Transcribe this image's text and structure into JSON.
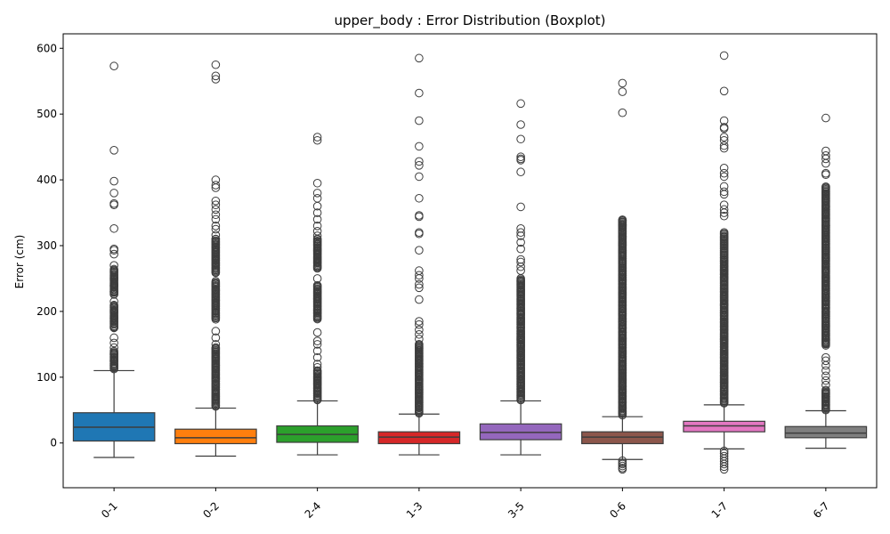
{
  "chart_data": {
    "type": "boxplot",
    "title": "upper_body : Error Distribution (Boxplot)",
    "xlabel": "",
    "ylabel": "Error (cm)",
    "ylim": [
      -68,
      622
    ],
    "yticks": [
      0,
      100,
      200,
      300,
      400,
      500,
      600
    ],
    "grid": false,
    "legend": "none",
    "categories": [
      "0-1",
      "0-2",
      "2-4",
      "1-3",
      "3-5",
      "0-6",
      "1-7",
      "6-7"
    ],
    "colors": [
      "#1f77b4",
      "#ff7f0e",
      "#2ca02c",
      "#d62728",
      "#9467bd",
      "#8c564b",
      "#e377c2",
      "#7f7f7f"
    ],
    "series": [
      {
        "whisker_low": -22,
        "q1": 3,
        "median": 24,
        "q3": 46,
        "whisker_high": 110,
        "outliers_low": [],
        "outlier_dense_ranges": [
          [
            112,
            140
          ],
          [
            175,
            210
          ],
          [
            225,
            265
          ]
        ],
        "outliers": [
          573,
          445,
          398,
          380,
          364,
          362,
          326,
          295,
          293,
          287,
          270,
          250,
          240,
          230,
          215,
          200,
          190,
          185,
          175,
          160,
          152,
          145,
          135,
          125,
          118
        ]
      },
      {
        "whisker_low": -20,
        "q1": -1,
        "median": 8,
        "q3": 21,
        "whisker_high": 53,
        "outliers_low": [],
        "outlier_dense_ranges": [
          [
            55,
            145
          ],
          [
            188,
            245
          ],
          [
            258,
            310
          ]
        ],
        "outliers": [
          575,
          558,
          553,
          400,
          392,
          388,
          368,
          362,
          355,
          347,
          340,
          330,
          325,
          316,
          310,
          170,
          160,
          150
        ]
      },
      {
        "whisker_low": -18,
        "q1": 1,
        "median": 13,
        "q3": 26,
        "whisker_high": 64,
        "outliers_low": [],
        "outlier_dense_ranges": [
          [
            65,
            110
          ],
          [
            188,
            240
          ],
          [
            265,
            310
          ]
        ],
        "outliers": [
          465,
          460,
          395,
          380,
          372,
          360,
          350,
          340,
          330,
          322,
          315,
          250,
          168,
          155,
          150,
          140,
          130,
          120,
          115
        ]
      },
      {
        "whisker_low": -18,
        "q1": -1,
        "median": 9,
        "q3": 17,
        "whisker_high": 44,
        "outliers_low": [],
        "outlier_dense_ranges": [
          [
            45,
            150
          ]
        ],
        "outliers": [
          585,
          532,
          490,
          451,
          428,
          422,
          405,
          372,
          346,
          344,
          320,
          318,
          293,
          262,
          255,
          250,
          241,
          236,
          218,
          185,
          180,
          172,
          165,
          158
        ]
      },
      {
        "whisker_low": -18,
        "q1": 5,
        "median": 16,
        "q3": 29,
        "whisker_high": 64,
        "outliers_low": [],
        "outlier_dense_ranges": [
          [
            65,
            250
          ]
        ],
        "outliers": [
          516,
          484,
          462,
          435,
          432,
          430,
          412,
          359,
          326,
          320,
          315,
          305,
          295,
          279,
          275,
          268,
          262
        ]
      },
      {
        "whisker_low": -25,
        "q1": -1,
        "median": 9,
        "q3": 17,
        "whisker_high": 40,
        "outliers_low": [
          -27,
          -30,
          -32,
          -35,
          -38,
          -40
        ],
        "outlier_dense_ranges": [
          [
            42,
            340
          ]
        ],
        "outliers": [
          547,
          534,
          502,
          338,
          332
        ]
      },
      {
        "whisker_low": -9,
        "q1": 17,
        "median": 26,
        "q3": 33,
        "whisker_high": 58,
        "outliers_low": [
          -12,
          -16,
          -20,
          -24,
          -28,
          -32,
          -36,
          -40
        ],
        "outlier_dense_ranges": [
          [
            60,
            320
          ]
        ],
        "outliers": [
          589,
          535,
          490,
          480,
          478,
          465,
          460,
          452,
          448,
          418,
          410,
          405,
          390,
          382,
          378,
          362,
          355,
          350,
          345
        ]
      },
      {
        "whisker_low": -8,
        "q1": 8,
        "median": 15,
        "q3": 25,
        "whisker_high": 49,
        "outliers_low": [],
        "outlier_dense_ranges": [
          [
            50,
            80
          ],
          [
            148,
            390
          ]
        ],
        "outliers": [
          494,
          444,
          437,
          432,
          425,
          410,
          408,
          130,
          125,
          118,
          110,
          102,
          95,
          88
        ]
      }
    ]
  }
}
